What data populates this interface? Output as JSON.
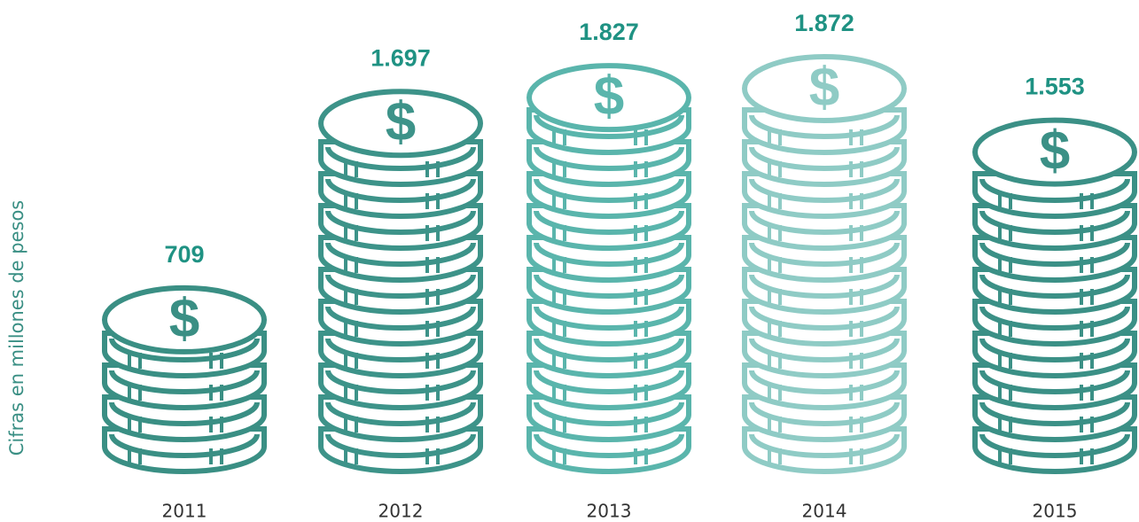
{
  "chart_data": {
    "type": "coin-stack",
    "axis_title": "Cifras en millones de pesos",
    "categories": [
      "2011",
      "2012",
      "2013",
      "2014",
      "2015"
    ],
    "values": [
      709,
      1697,
      1827,
      1872,
      1553
    ],
    "value_labels": [
      "709",
      "1.697",
      "1.827",
      "1.872",
      "1.553"
    ],
    "colors": [
      "#3a8f84",
      "#3d9389",
      "#5ab5ac",
      "#8fcbc5",
      "#3b9086"
    ],
    "label_color": "#1f9283",
    "symbol": "$"
  }
}
